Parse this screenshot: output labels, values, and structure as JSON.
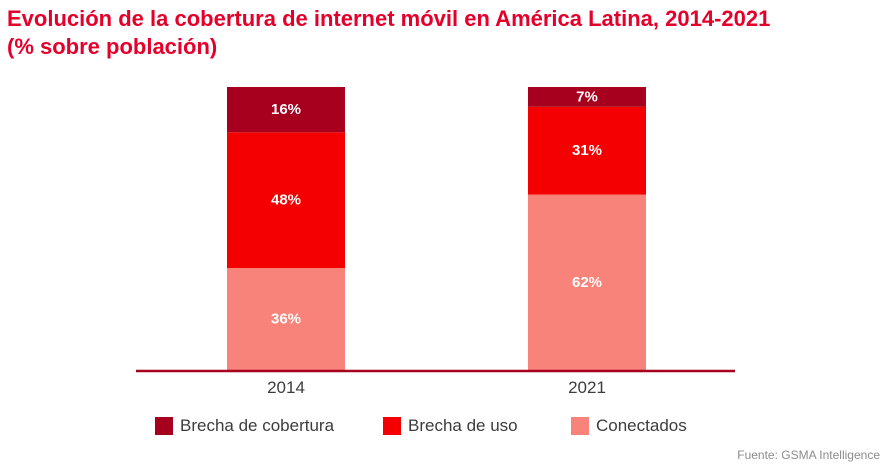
{
  "title_line1": "Evolución de la cobertura de internet móvil en América Latina, 2014-2021",
  "title_line2": "(% sobre población)",
  "source": "Fuente: GSMA Intelligence",
  "legend": [
    {
      "label": "Brecha de cobertura",
      "color": "#a6001e"
    },
    {
      "label": "Brecha de uso",
      "color": "#f40000"
    },
    {
      "label": "Conectados",
      "color": "#f8837a"
    }
  ],
  "axis_color": "#a6001e",
  "chart_data": {
    "type": "bar",
    "stacked": true,
    "categories": [
      "2014",
      "2021"
    ],
    "series": [
      {
        "name": "Conectados",
        "values": [
          36,
          62
        ],
        "labels": [
          "36%",
          "62%"
        ],
        "color": "#f8837a"
      },
      {
        "name": "Brecha de uso",
        "values": [
          48,
          31
        ],
        "labels": [
          "48%",
          "31%"
        ],
        "color": "#f40000"
      },
      {
        "name": "Brecha de cobertura",
        "values": [
          16,
          7
        ],
        "labels": [
          "16%",
          "7%"
        ],
        "color": "#a6001e"
      }
    ],
    "title": "Evolución de la cobertura de internet móvil en América Latina, 2014-2021 (% sobre población)",
    "xlabel": "",
    "ylabel": "",
    "ylim": [
      0,
      100
    ],
    "grid": false,
    "legend_position": "bottom"
  }
}
